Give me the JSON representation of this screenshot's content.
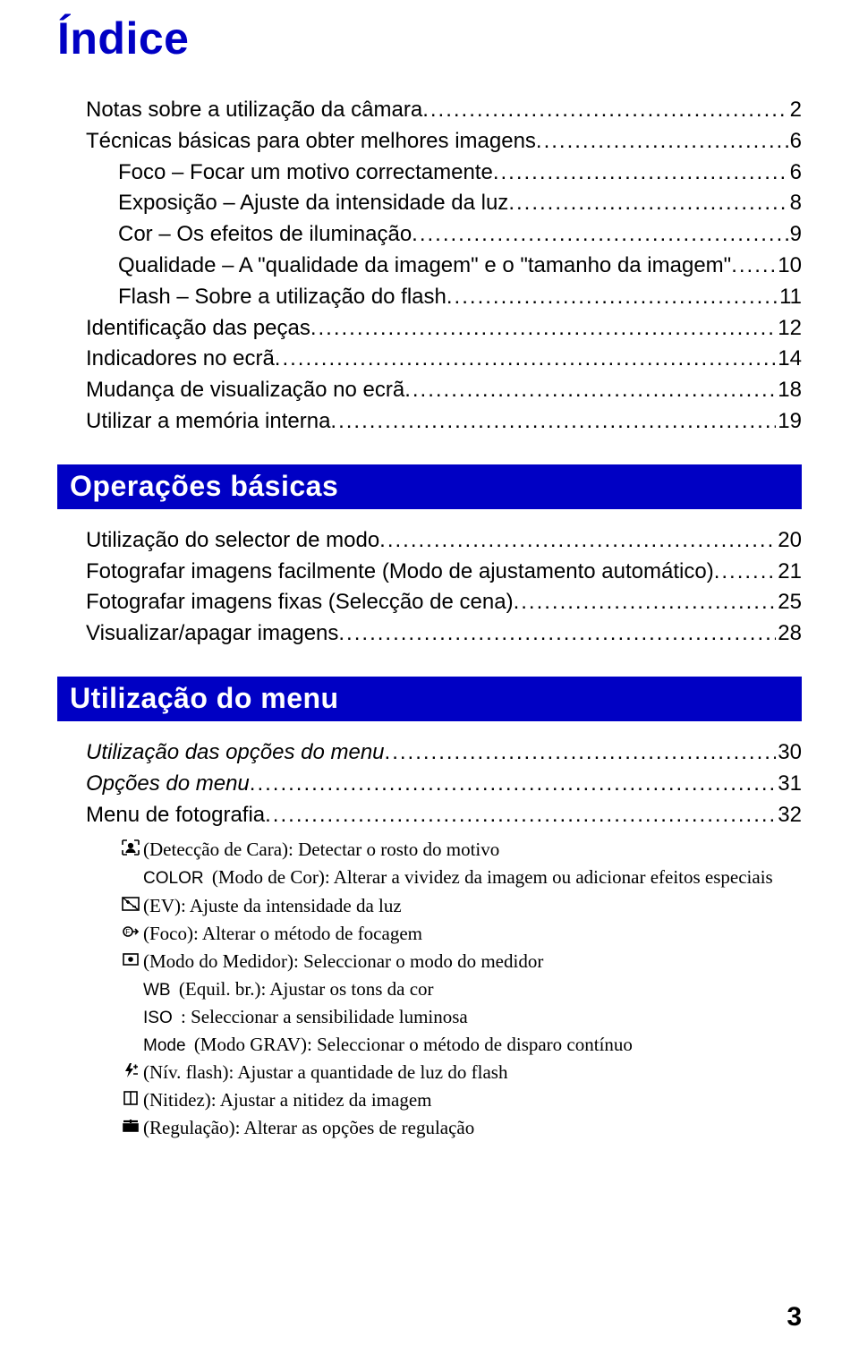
{
  "colors": {
    "brand": "#0000c4",
    "text": "#000000",
    "bg": "#ffffff"
  },
  "typography": {
    "title_size_pt": 38,
    "toc_size_pt": 18,
    "section_size_pt": 24,
    "sub_size_pt": 16
  },
  "title": "Índice",
  "page_number": "3",
  "intro_toc": [
    {
      "label": "Notas sobre a utilização da câmara",
      "page": "2",
      "indent": 0
    },
    {
      "label": "Técnicas básicas para obter melhores imagens",
      "page": "6",
      "indent": 0
    },
    {
      "label": "Foco – Focar um motivo correctamente",
      "page": " 6",
      "indent": 1
    },
    {
      "label": "Exposição – Ajuste da intensidade da luz",
      "page": " 8",
      "indent": 1
    },
    {
      "label": "Cor – Os efeitos de iluminação",
      "page": " 9",
      "indent": 1
    },
    {
      "label": "Qualidade – A \"qualidade da imagem\" e o \"tamanho da imagem\"",
      "page": " 10",
      "indent": 1
    },
    {
      "label": "Flash – Sobre a utilização do flash",
      "page": " 11",
      "indent": 1
    },
    {
      "label": "Identificação das peças",
      "page": "12",
      "indent": 0
    },
    {
      "label": "Indicadores no ecrã",
      "page": "14",
      "indent": 0
    },
    {
      "label": "Mudança de visualização no ecrã",
      "page": "18",
      "indent": 0
    },
    {
      "label": "Utilizar a memória interna",
      "page": "19",
      "indent": 0
    }
  ],
  "sections": [
    {
      "title": "Operações básicas",
      "toc": [
        {
          "label": "Utilização do selector de modo",
          "page": "20",
          "indent": 0
        },
        {
          "label": "Fotografar imagens facilmente (Modo de ajustamento automático)",
          "page": "21",
          "indent": 0
        },
        {
          "label": "Fotografar imagens fixas (Selecção de cena)",
          "page": "25",
          "indent": 0
        },
        {
          "label": "Visualizar/apagar imagens",
          "page": "28",
          "indent": 0
        }
      ]
    },
    {
      "title": "Utilização do menu",
      "toc": [
        {
          "label": "Utilização das opções do menu",
          "page": "30",
          "indent": 0,
          "italic": true
        },
        {
          "label": "Opções do menu",
          "page": "31",
          "indent": 0,
          "italic": true
        },
        {
          "label": "Menu de fotografia",
          "page": "32",
          "indent": 0
        }
      ],
      "sub_items": [
        {
          "icon": "face",
          "text": "(Detecção de Cara): Detectar o rosto do motivo"
        },
        {
          "prefix": "COLOR",
          "text": "(Modo de Cor): Alterar a vividez da imagem ou adicionar efeitos especiais"
        },
        {
          "icon": "ev",
          "text": "(EV): Ajuste da intensidade da luz"
        },
        {
          "icon": "focus",
          "text": "(Foco): Alterar o método de focagem"
        },
        {
          "icon": "meter",
          "text": "(Modo do Medidor): Seleccionar o modo do medidor"
        },
        {
          "prefix": "WB",
          "text": "(Equil. br.): Ajustar os tons da cor"
        },
        {
          "prefix": "ISO",
          "text": ": Seleccionar a sensibilidade luminosa"
        },
        {
          "prefix": "Mode",
          "text": "(Modo GRAV): Seleccionar o método de disparo contínuo"
        },
        {
          "icon": "flash",
          "text": "(Nív. flash): Ajustar a quantidade de luz do flash"
        },
        {
          "icon": "sharp",
          "text": "(Nitidez): Ajustar a nitidez da imagem"
        },
        {
          "icon": "setup",
          "text": "(Regulação): Alterar as opções de regulação"
        }
      ]
    }
  ]
}
